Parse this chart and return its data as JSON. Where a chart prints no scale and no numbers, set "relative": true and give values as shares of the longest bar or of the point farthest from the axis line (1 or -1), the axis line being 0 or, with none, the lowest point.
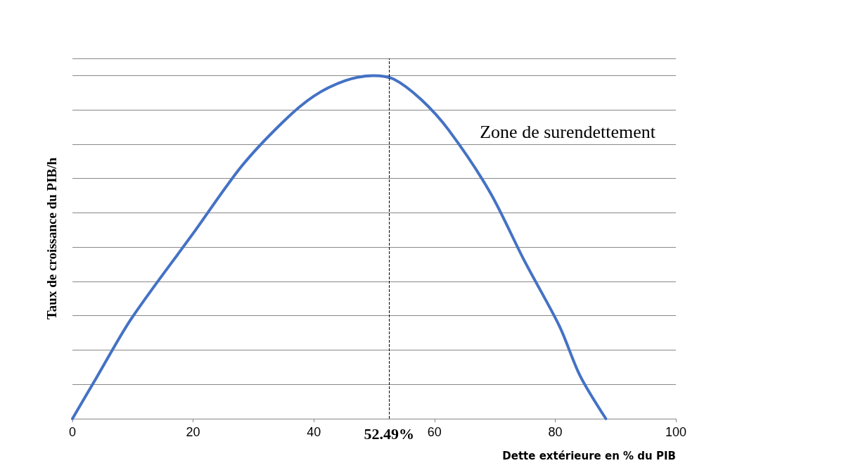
{
  "chart_data": {
    "type": "line",
    "relative": true,
    "xlabel": "Dette extérieure en % du PIB",
    "ylabel": "Taux de croissance du PIB/h",
    "series": [
      {
        "color": "#4472c4",
        "x": [
          0,
          4,
          9.7,
          20,
          28,
          34.9,
          40,
          45.2,
          49.8,
          53.2,
          57.8,
          62.4,
          69.2,
          74.9,
          80.7,
          84.1,
          88.4
        ],
        "values": [
          0,
          0.12,
          0.29,
          0.54,
          0.735,
          0.865,
          0.94,
          0.985,
          1,
          0.99,
          0.93,
          0.84,
          0.66,
          0.46,
          0.27,
          0.126,
          0
        ]
      }
    ],
    "xlim": [
      0,
      100
    ],
    "xticks": [
      0,
      20,
      40,
      60,
      80,
      100
    ],
    "tick_labels": "x",
    "grid": "y",
    "marker": "none",
    "line_style": "solid",
    "ref_lines": [
      {
        "axis": "x",
        "value": 52.49,
        "label": "52.49%",
        "line_style": "dashed",
        "color": "#000000"
      }
    ],
    "annotations": [
      "Zone de surendettement"
    ]
  }
}
